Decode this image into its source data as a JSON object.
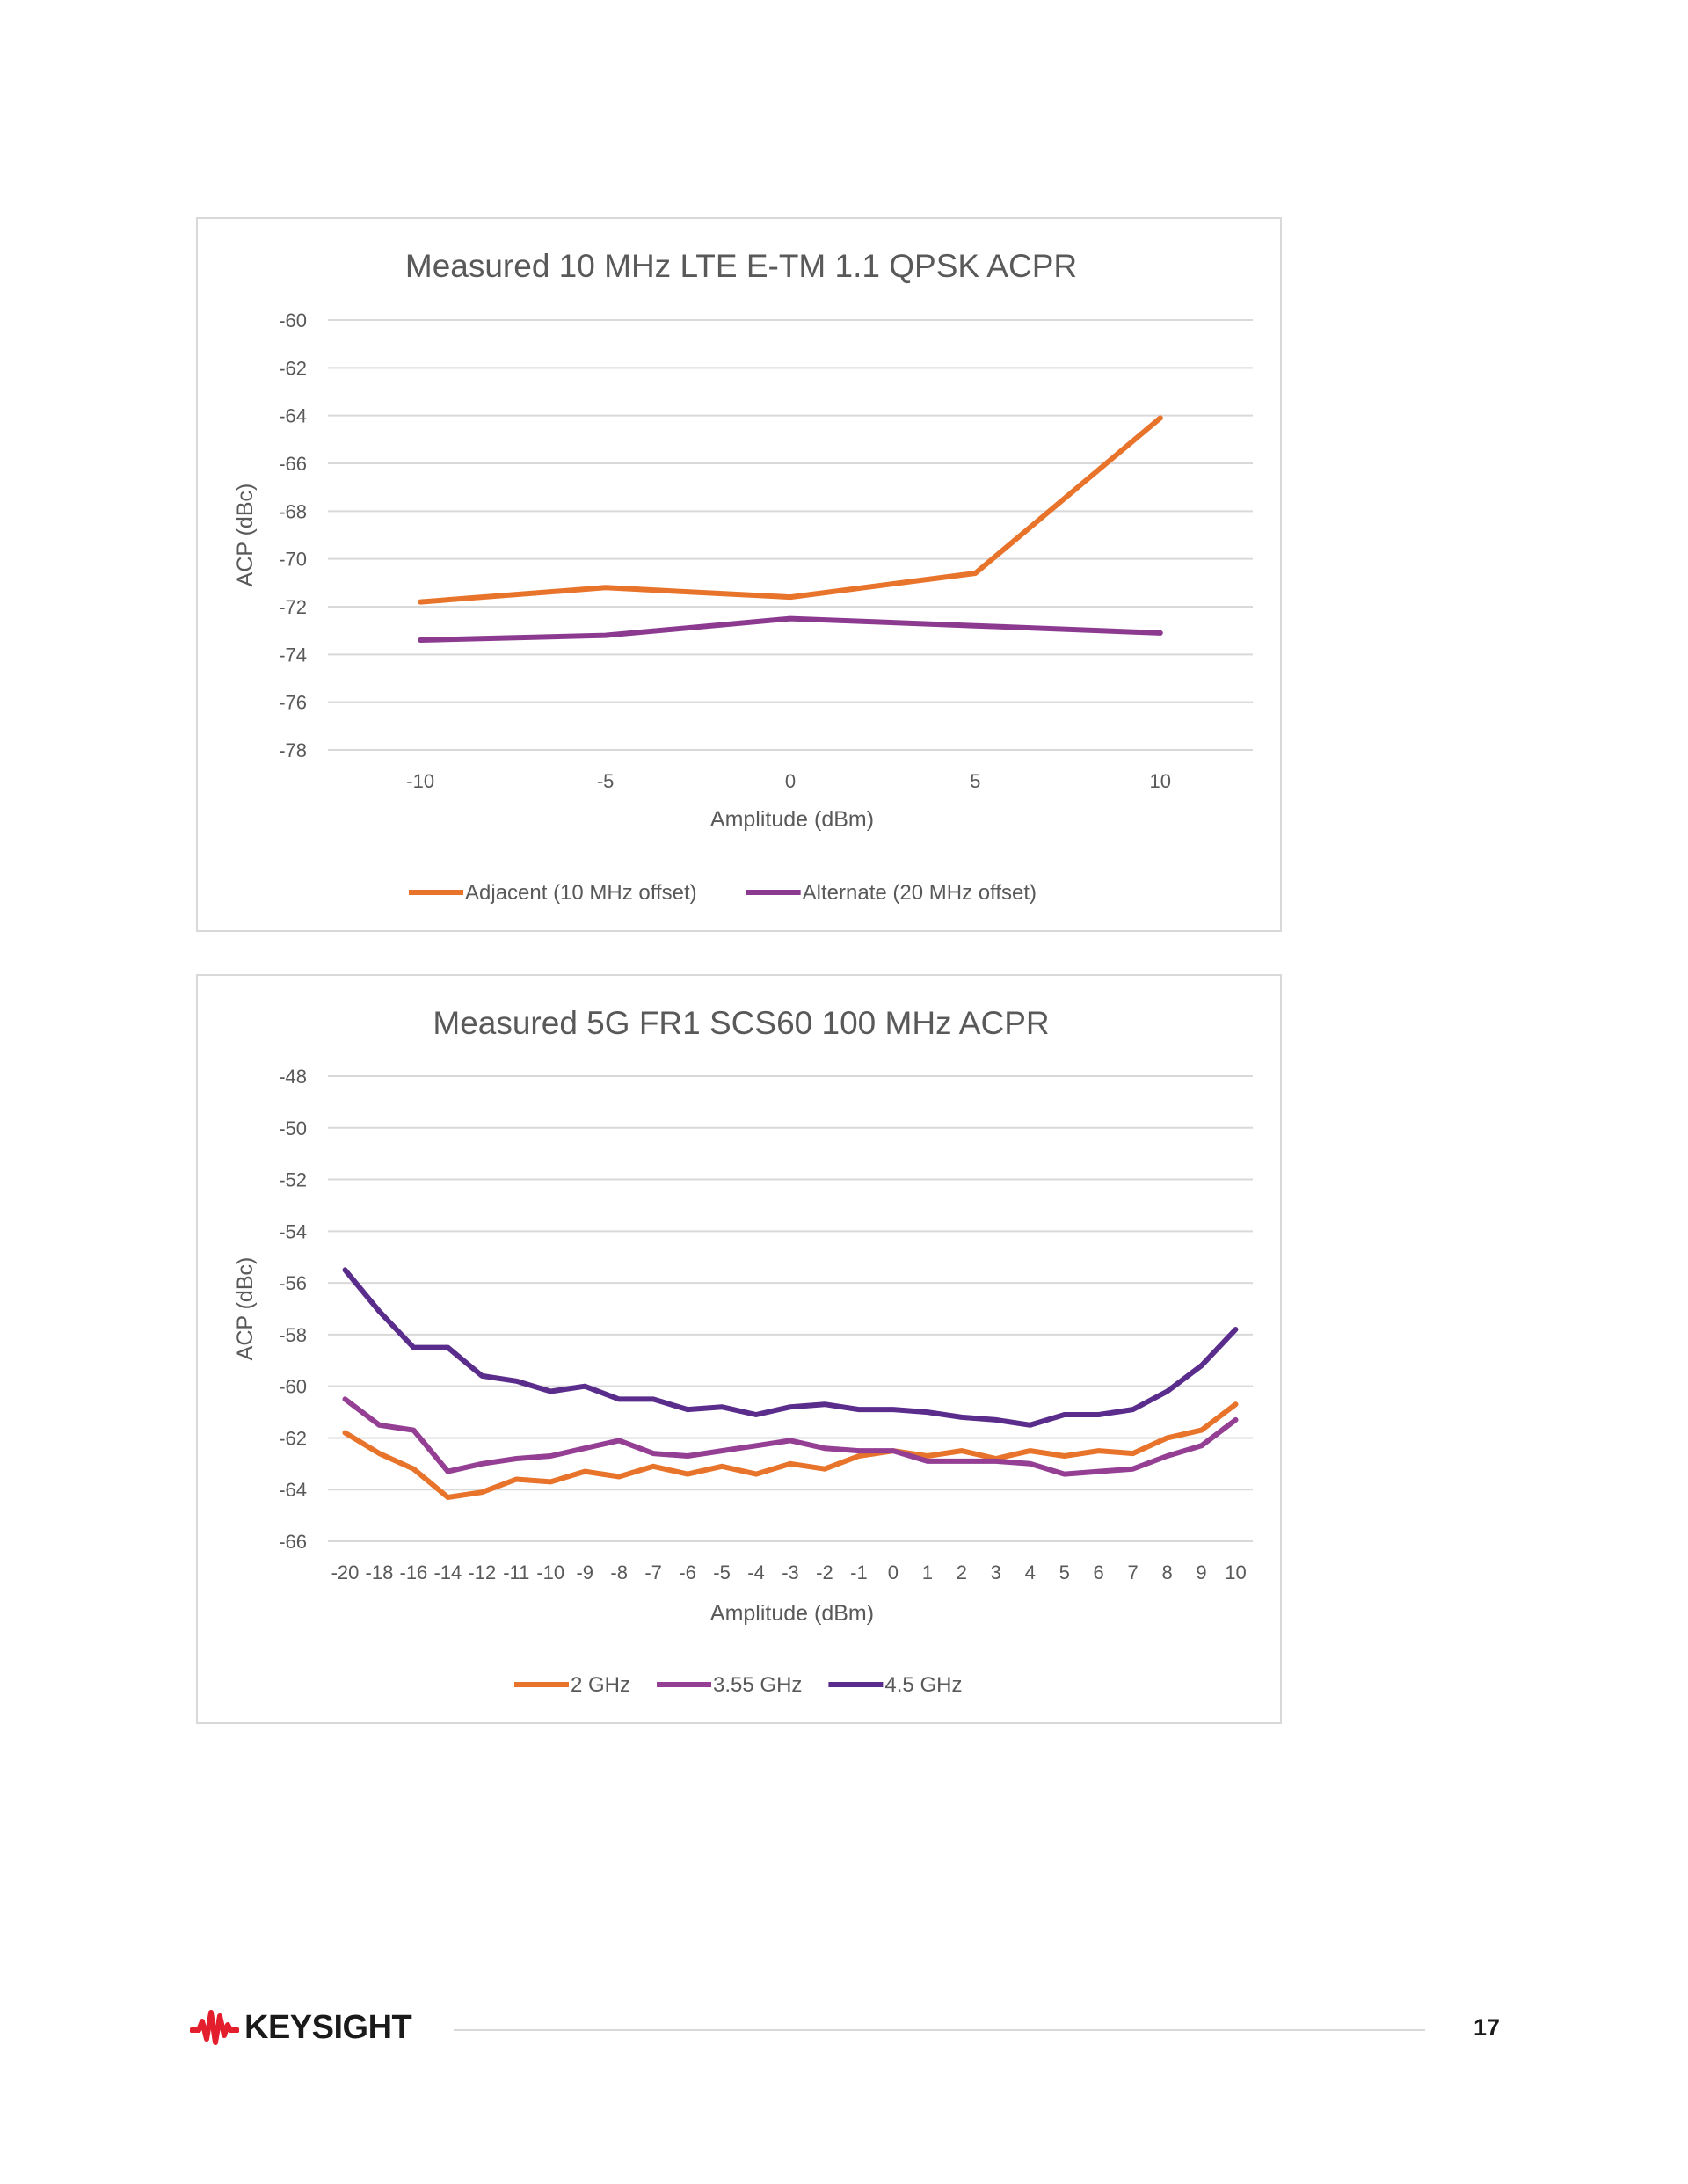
{
  "chart_data": [
    {
      "type": "line",
      "title": "Measured 10 MHz LTE E-TM 1.1 QPSK ACPR",
      "xlabel": "Amplitude (dBm)",
      "ylabel": "ACP (dBc)",
      "categories": [
        "-10",
        "-5",
        "0",
        "5",
        "10"
      ],
      "ylim": [
        -78,
        -60
      ],
      "yticks": [
        -60,
        -62,
        -64,
        -66,
        -68,
        -70,
        -72,
        -74,
        -76,
        -78
      ],
      "grid": true,
      "legend_position": "bottom",
      "series": [
        {
          "name": "Adjacent (10 MHz offset)",
          "color": "#E8732A",
          "values": [
            -71.8,
            -71.2,
            -71.6,
            -70.6,
            -64.1
          ]
        },
        {
          "name": "Alternate (20 MHz offset)",
          "color": "#8B3A8F",
          "values": [
            -73.4,
            -73.2,
            -72.5,
            -72.8,
            -73.1
          ]
        }
      ]
    },
    {
      "type": "line",
      "title": "Measured 5G FR1 SCS60 100 MHz ACPR",
      "xlabel": "Amplitude (dBm)",
      "ylabel": "ACP (dBc)",
      "categories": [
        "-20",
        "-18",
        "-16",
        "-14",
        "-12",
        "-11",
        "-10",
        "-9",
        "-8",
        "-7",
        "-6",
        "-5",
        "-4",
        "-3",
        "-2",
        "-1",
        "0",
        "1",
        "2",
        "3",
        "4",
        "5",
        "6",
        "7",
        "8",
        "9",
        "10"
      ],
      "ylim": [
        -66,
        -48
      ],
      "yticks": [
        -48,
        -50,
        -52,
        -54,
        -56,
        -58,
        -60,
        -62,
        -64,
        -66
      ],
      "grid": true,
      "legend_position": "bottom",
      "series": [
        {
          "name": "2 GHz",
          "color": "#E8732A",
          "values": [
            -61.8,
            -62.6,
            -63.2,
            -64.3,
            -64.1,
            -63.6,
            -63.7,
            -63.3,
            -63.5,
            -63.1,
            -63.4,
            -63.1,
            -63.4,
            -63.0,
            -63.2,
            -62.7,
            -62.5,
            -62.7,
            -62.5,
            -62.8,
            -62.5,
            -62.7,
            -62.5,
            -62.6,
            -62.0,
            -61.7,
            -60.7
          ]
        },
        {
          "name": "3.55 GHz",
          "color": "#943F94",
          "values": [
            -60.5,
            -61.5,
            -61.7,
            -63.3,
            -63.0,
            -62.8,
            -62.7,
            -62.4,
            -62.1,
            -62.6,
            -62.7,
            -62.5,
            -62.3,
            -62.1,
            -62.4,
            -62.5,
            -62.5,
            -62.9,
            -62.9,
            -62.9,
            -63.0,
            -63.4,
            -63.3,
            -63.2,
            -62.7,
            -62.3,
            -61.3
          ]
        },
        {
          "name": "4.5 GHz",
          "color": "#5A2D8C",
          "values": [
            -55.5,
            -57.1,
            -58.5,
            -58.5,
            -59.6,
            -59.8,
            -60.2,
            -60.0,
            -60.5,
            -60.5,
            -60.9,
            -60.8,
            -61.1,
            -60.8,
            -60.7,
            -60.9,
            -60.9,
            -61.0,
            -61.2,
            -61.3,
            -61.5,
            -61.1,
            -61.1,
            -60.9,
            -60.2,
            -59.2,
            -57.8
          ]
        }
      ]
    }
  ],
  "footer": {
    "brand": "KEYSIGHT",
    "page_number": "17",
    "brand_color": "#E31E2D"
  }
}
